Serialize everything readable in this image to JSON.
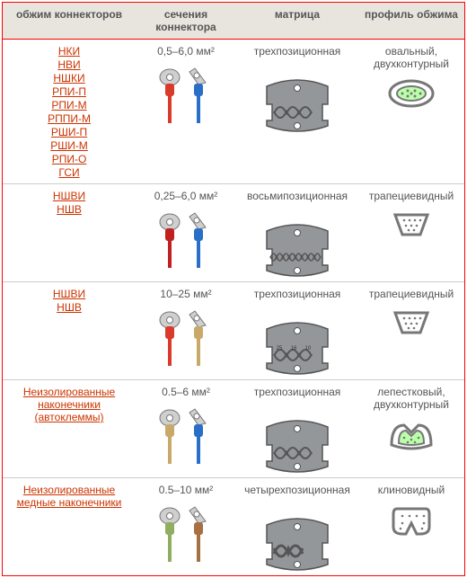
{
  "header": {
    "c1": "обжим коннекторов",
    "c2": "сечения коннектора",
    "c3": "матрица",
    "c4": "профиль обжима"
  },
  "rows": [
    {
      "links": [
        "НКИ",
        "НВИ",
        "НШКИ",
        "РПИ-П",
        "РПИ-М",
        "РППИ-М",
        "РШИ-П",
        "РШИ-М",
        "РПИ-О",
        "ГСИ"
      ],
      "section": "0,5–6,0 мм²",
      "matrix": "трехпозиционная",
      "profile": "овальный, двухконтурный",
      "connector_colors": [
        "#d93a2a",
        "#2a6fc7"
      ],
      "die_color": "#94979a",
      "profile_icon": "oval-double"
    },
    {
      "links": [
        "НШВИ",
        "НШВ"
      ],
      "section": "0,25–6,0 мм²",
      "matrix": "восьмипозиционная",
      "profile": "трапециевидный",
      "connector_colors": [
        "#c02020",
        "#2a6fc7"
      ],
      "die_color": "#94979a",
      "profile_icon": "trapezoid"
    },
    {
      "links": [
        "НШВИ",
        "НШВ"
      ],
      "section": "10–25 мм²",
      "matrix": "трехпозиционная",
      "profile": "трапециевидный",
      "connector_colors": [
        "#d93a2a",
        "#c9a96a"
      ],
      "die_color": "#94979a",
      "profile_icon": "trapezoid"
    },
    {
      "links": [
        "Неизолированные наконечники (автоклеммы)"
      ],
      "section": "0.5–6 мм²",
      "matrix": "трехпозиционная",
      "profile": "лепестковый, двухконтурный",
      "connector_colors": [
        "#c9a96a",
        "#2a6fc7"
      ],
      "die_color": "#94979a",
      "profile_icon": "petal-double"
    },
    {
      "links": [
        "Неизолированные медные наконечники"
      ],
      "section": "0.5–10 мм²",
      "matrix": "четырехпозиционная",
      "profile": "клиновидный",
      "connector_colors": [
        "#8fae5f",
        "#a67040"
      ],
      "die_color": "#94979a",
      "profile_icon": "wedge"
    }
  ],
  "style": {
    "border_color": "#ff0000",
    "header_bg": "#e8e5de",
    "link_color": "#cc3300",
    "text_color": "#555555",
    "row_divider": "#cccccc"
  }
}
